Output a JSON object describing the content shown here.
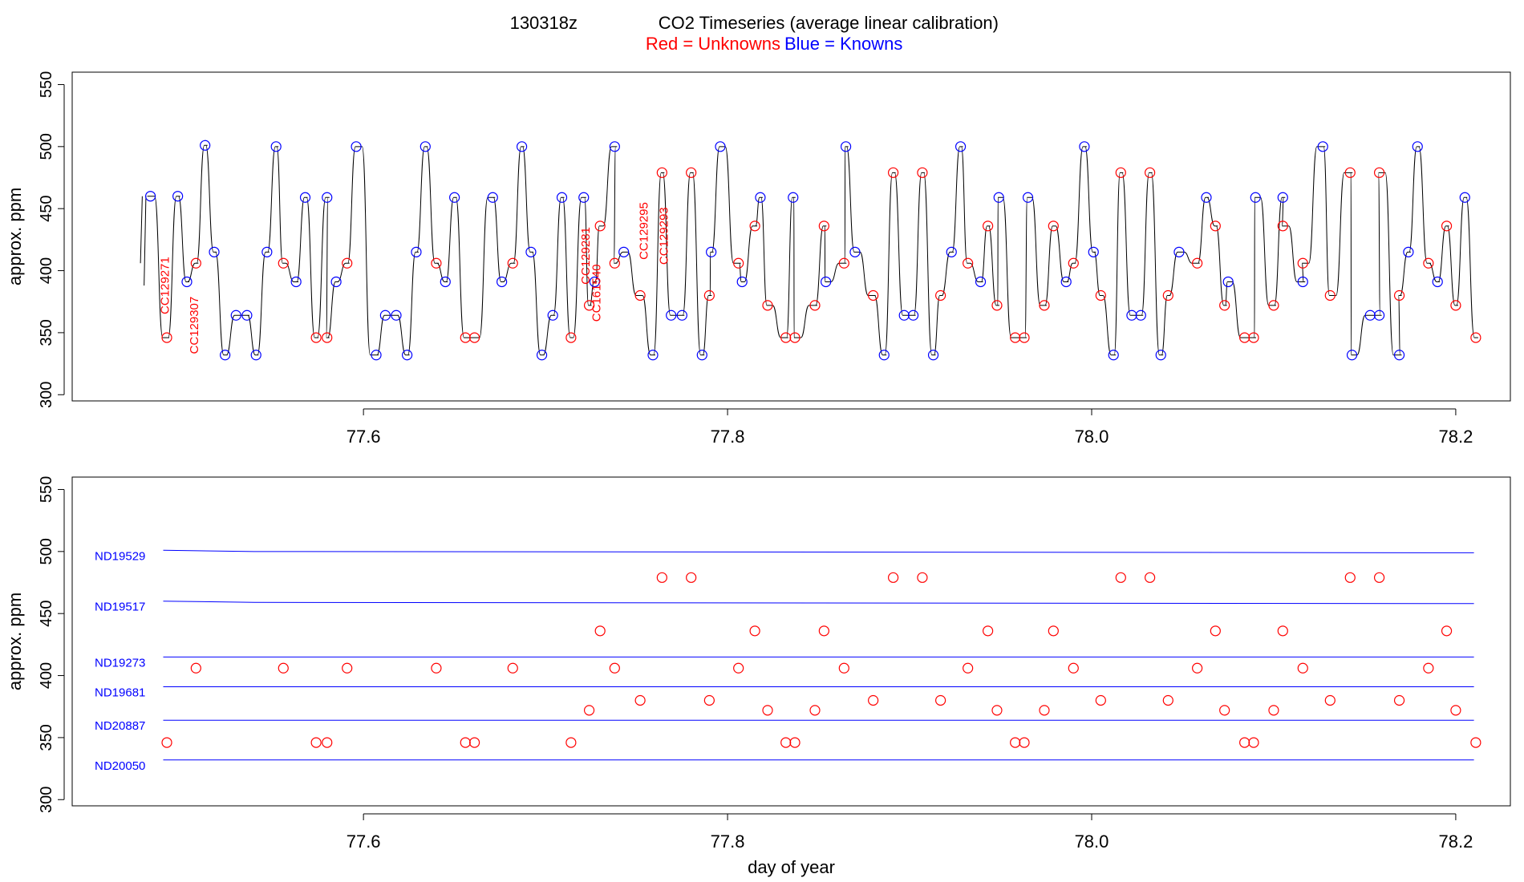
{
  "title": {
    "prefix": "130318z",
    "main": "CO2 Timeseries (average linear calibration)",
    "legend_red": "Red = Unknowns",
    "legend_blue": "Blue = Knowns"
  },
  "colors": {
    "unknown": "#ff0000",
    "known": "#0000ff",
    "trace": "#000000"
  },
  "chart_data": [
    {
      "type": "line",
      "ylabel": "approx. ppm",
      "xlim": [
        77.44,
        78.23
      ],
      "ylim": [
        295,
        560
      ],
      "xticks": [
        77.6,
        77.8,
        78.0,
        78.2
      ],
      "xtick_labels": [
        "77.6",
        "77.8",
        "78.0",
        "78.2"
      ],
      "yticks": [
        300,
        350,
        400,
        450,
        500,
        550
      ],
      "ytick_labels": [
        "300",
        "350",
        "400",
        "450",
        "500",
        "550"
      ],
      "series": [
        {
          "name": "Knowns",
          "color": "#0000ff",
          "points": [
            [
              77.483,
              460
            ],
            [
              77.498,
              460
            ],
            [
              77.503,
              391
            ],
            [
              77.513,
              501
            ],
            [
              77.518,
              415
            ],
            [
              77.524,
              332
            ],
            [
              77.53,
              364
            ],
            [
              77.536,
              364
            ],
            [
              77.541,
              332
            ],
            [
              77.547,
              415
            ],
            [
              77.552,
              500
            ],
            [
              77.563,
              391
            ],
            [
              77.568,
              459
            ],
            [
              77.58,
              459
            ],
            [
              77.585,
              391
            ],
            [
              77.596,
              500
            ],
            [
              77.607,
              332
            ],
            [
              77.612,
              364
            ],
            [
              77.618,
              364
            ],
            [
              77.624,
              332
            ],
            [
              77.629,
              415
            ],
            [
              77.634,
              500
            ],
            [
              77.645,
              391
            ],
            [
              77.65,
              459
            ],
            [
              77.671,
              459
            ],
            [
              77.676,
              391
            ],
            [
              77.687,
              500
            ],
            [
              77.692,
              415
            ],
            [
              77.698,
              332
            ],
            [
              77.704,
              364
            ],
            [
              77.709,
              459
            ],
            [
              77.721,
              459
            ],
            [
              77.727,
              391
            ],
            [
              77.738,
              500
            ],
            [
              77.743,
              415
            ],
            [
              77.759,
              332
            ],
            [
              77.769,
              364
            ],
            [
              77.775,
              364
            ],
            [
              77.786,
              332
            ],
            [
              77.791,
              415
            ],
            [
              77.796,
              500
            ],
            [
              77.808,
              391
            ],
            [
              77.818,
              459
            ],
            [
              77.836,
              459
            ],
            [
              77.854,
              391
            ],
            [
              77.865,
              500
            ],
            [
              77.87,
              415
            ],
            [
              77.886,
              332
            ],
            [
              77.897,
              364
            ],
            [
              77.902,
              364
            ],
            [
              77.913,
              332
            ],
            [
              77.923,
              415
            ],
            [
              77.928,
              500
            ],
            [
              77.939,
              391
            ],
            [
              77.949,
              459
            ],
            [
              77.965,
              459
            ],
            [
              77.986,
              391
            ],
            [
              77.996,
              500
            ],
            [
              78.001,
              415
            ],
            [
              78.012,
              332
            ],
            [
              78.022,
              364
            ],
            [
              78.027,
              364
            ],
            [
              78.038,
              332
            ],
            [
              78.048,
              415
            ],
            [
              78.063,
              459
            ],
            [
              78.075,
              391
            ],
            [
              78.09,
              459
            ],
            [
              78.105,
              459
            ],
            [
              78.116,
              391
            ],
            [
              78.127,
              500
            ],
            [
              78.143,
              332
            ],
            [
              78.153,
              364
            ],
            [
              78.158,
              364
            ],
            [
              78.169,
              332
            ],
            [
              78.174,
              415
            ],
            [
              78.179,
              500
            ],
            [
              78.19,
              391
            ],
            [
              78.205,
              459
            ]
          ]
        },
        {
          "name": "Unknowns",
          "color": "#ff0000",
          "points": [
            [
              77.492,
              346
            ],
            [
              77.508,
              406
            ],
            [
              77.556,
              406
            ],
            [
              77.574,
              346
            ],
            [
              77.58,
              346
            ],
            [
              77.591,
              406
            ],
            [
              77.64,
              406
            ],
            [
              77.656,
              346
            ],
            [
              77.661,
              346
            ],
            [
              77.682,
              406
            ],
            [
              77.714,
              346
            ],
            [
              77.724,
              372
            ],
            [
              77.73,
              436
            ],
            [
              77.738,
              406
            ],
            [
              77.752,
              380
            ],
            [
              77.764,
              479
            ],
            [
              77.78,
              479
            ],
            [
              77.79,
              380
            ],
            [
              77.806,
              406
            ],
            [
              77.815,
              436
            ],
            [
              77.822,
              372
            ],
            [
              77.832,
              346
            ],
            [
              77.837,
              346
            ],
            [
              77.848,
              372
            ],
            [
              77.853,
              436
            ],
            [
              77.864,
              406
            ],
            [
              77.88,
              380
            ],
            [
              77.891,
              479
            ],
            [
              77.907,
              479
            ],
            [
              77.917,
              380
            ],
            [
              77.932,
              406
            ],
            [
              77.943,
              436
            ],
            [
              77.948,
              372
            ],
            [
              77.958,
              346
            ],
            [
              77.963,
              346
            ],
            [
              77.974,
              372
            ],
            [
              77.979,
              436
            ],
            [
              77.99,
              406
            ],
            [
              78.005,
              380
            ],
            [
              78.016,
              479
            ],
            [
              78.032,
              479
            ],
            [
              78.042,
              380
            ],
            [
              78.058,
              406
            ],
            [
              78.068,
              436
            ],
            [
              78.073,
              372
            ],
            [
              78.084,
              346
            ],
            [
              78.089,
              346
            ],
            [
              78.1,
              372
            ],
            [
              78.105,
              436
            ],
            [
              78.116,
              406
            ],
            [
              78.131,
              380
            ],
            [
              78.142,
              479
            ],
            [
              78.158,
              479
            ],
            [
              78.169,
              380
            ],
            [
              78.185,
              406
            ],
            [
              78.195,
              436
            ],
            [
              78.2,
              372
            ],
            [
              78.211,
              346
            ]
          ]
        }
      ],
      "annotations": [
        {
          "text": "CC129271",
          "x": 77.491,
          "y": 388,
          "color": "#ff0000",
          "rotation": -90
        },
        {
          "text": "CC129307",
          "x": 77.507,
          "y": 356,
          "color": "#ff0000",
          "rotation": -90
        },
        {
          "text": "CC129281",
          "x": 77.722,
          "y": 412,
          "color": "#ff0000",
          "rotation": -90
        },
        {
          "text": "CC161540",
          "x": 77.728,
          "y": 382,
          "color": "#ff0000",
          "rotation": -90
        },
        {
          "text": "CC129295",
          "x": 77.754,
          "y": 432,
          "color": "#ff0000",
          "rotation": -90
        },
        {
          "text": "CC129293",
          "x": 77.765,
          "y": 428,
          "color": "#ff0000",
          "rotation": -90
        }
      ]
    },
    {
      "type": "scatter",
      "xlabel": "day of year",
      "ylabel": "approx. ppm",
      "xlim": [
        77.44,
        78.23
      ],
      "ylim": [
        295,
        560
      ],
      "xticks": [
        77.6,
        77.8,
        78.0,
        78.2
      ],
      "xtick_labels": [
        "77.6",
        "77.8",
        "78.0",
        "78.2"
      ],
      "yticks": [
        300,
        350,
        400,
        450,
        500,
        550
      ],
      "ytick_labels": [
        "300",
        "350",
        "400",
        "450",
        "500",
        "550"
      ],
      "reference_lines": [
        {
          "label": "ND19529",
          "color": "#0000ff",
          "x": [
            77.49,
            77.54,
            78.21
          ],
          "y": [
            501,
            500,
            499
          ]
        },
        {
          "label": "ND19517",
          "color": "#0000ff",
          "x": [
            77.49,
            77.54,
            78.21
          ],
          "y": [
            460,
            459,
            458
          ]
        },
        {
          "label": "ND19273",
          "color": "#0000ff",
          "x": [
            77.49,
            77.54,
            78.21
          ],
          "y": [
            415,
            415,
            415
          ]
        },
        {
          "label": "ND19681",
          "color": "#0000ff",
          "x": [
            77.49,
            77.54,
            78.21
          ],
          "y": [
            391,
            391,
            391
          ]
        },
        {
          "label": "ND20887",
          "color": "#0000ff",
          "x": [
            77.49,
            77.54,
            78.21
          ],
          "y": [
            364,
            364,
            364
          ]
        },
        {
          "label": "ND20050",
          "color": "#0000ff",
          "x": [
            77.49,
            77.54,
            78.21
          ],
          "y": [
            332,
            332,
            332
          ]
        }
      ],
      "series": [
        {
          "name": "Unknowns",
          "color": "#ff0000",
          "points": [
            [
              77.492,
              346
            ],
            [
              77.508,
              406
            ],
            [
              77.556,
              406
            ],
            [
              77.574,
              346
            ],
            [
              77.58,
              346
            ],
            [
              77.591,
              406
            ],
            [
              77.64,
              406
            ],
            [
              77.656,
              346
            ],
            [
              77.661,
              346
            ],
            [
              77.682,
              406
            ],
            [
              77.714,
              346
            ],
            [
              77.724,
              372
            ],
            [
              77.73,
              436
            ],
            [
              77.738,
              406
            ],
            [
              77.752,
              380
            ],
            [
              77.764,
              479
            ],
            [
              77.78,
              479
            ],
            [
              77.79,
              380
            ],
            [
              77.806,
              406
            ],
            [
              77.815,
              436
            ],
            [
              77.822,
              372
            ],
            [
              77.832,
              346
            ],
            [
              77.837,
              346
            ],
            [
              77.848,
              372
            ],
            [
              77.853,
              436
            ],
            [
              77.864,
              406
            ],
            [
              77.88,
              380
            ],
            [
              77.891,
              479
            ],
            [
              77.907,
              479
            ],
            [
              77.917,
              380
            ],
            [
              77.932,
              406
            ],
            [
              77.943,
              436
            ],
            [
              77.948,
              372
            ],
            [
              77.958,
              346
            ],
            [
              77.963,
              346
            ],
            [
              77.974,
              372
            ],
            [
              77.979,
              436
            ],
            [
              77.99,
              406
            ],
            [
              78.005,
              380
            ],
            [
              78.016,
              479
            ],
            [
              78.032,
              479
            ],
            [
              78.042,
              380
            ],
            [
              78.058,
              406
            ],
            [
              78.068,
              436
            ],
            [
              78.073,
              372
            ],
            [
              78.084,
              346
            ],
            [
              78.089,
              346
            ],
            [
              78.1,
              372
            ],
            [
              78.105,
              436
            ],
            [
              78.116,
              406
            ],
            [
              78.131,
              380
            ],
            [
              78.142,
              479
            ],
            [
              78.158,
              479
            ],
            [
              78.169,
              380
            ],
            [
              78.185,
              406
            ],
            [
              78.195,
              436
            ],
            [
              78.2,
              372
            ],
            [
              78.211,
              346
            ]
          ]
        }
      ]
    }
  ]
}
